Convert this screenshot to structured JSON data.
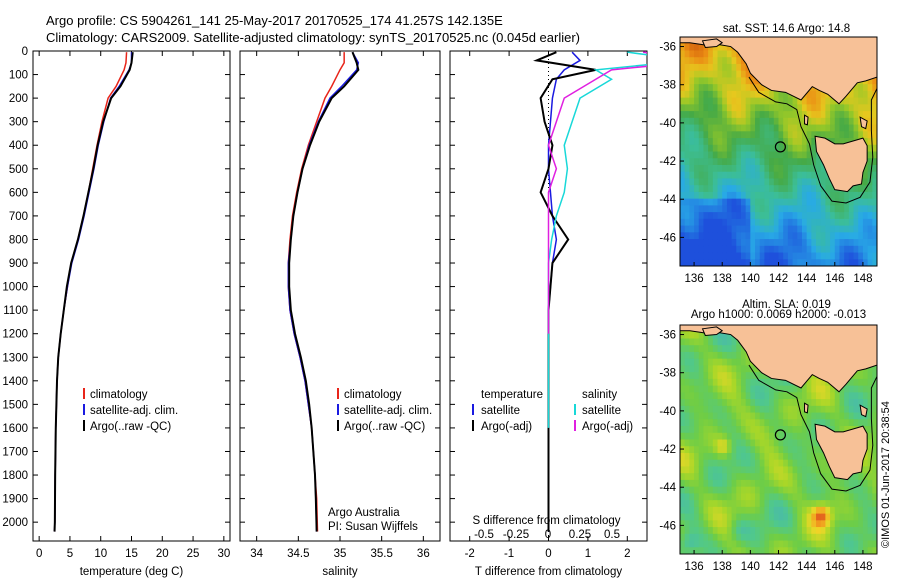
{
  "header": {
    "line1": "Argo profile: CS 5904261_141 25-May-2017 20170525_174 41.257S 142.135E",
    "line2": "Climatology: CARS2009. Satellite-adjusted climatology: synTS_20170525.nc (0.045d earlier)"
  },
  "credit": "©IMOS 01-Jun-2017 20:38:54",
  "colors": {
    "climatology": "#e8251a",
    "satellite": "#1a1ae0",
    "argo": "#000000",
    "sal_satellite": "#18d8d8",
    "sal_argo": "#e020e0",
    "land": "#f7c197",
    "coast": "#000000"
  },
  "chart_data": [
    {
      "type": "line",
      "id": "temperature",
      "xlabel": "temperature (deg C)",
      "ylabel": "",
      "xlim": [
        -1,
        31
      ],
      "ylim": [
        2080,
        0
      ],
      "xticks": [
        0,
        5,
        10,
        15,
        20,
        25,
        30
      ],
      "yticks": [
        0,
        100,
        200,
        300,
        400,
        500,
        600,
        700,
        800,
        900,
        1000,
        1100,
        1200,
        1300,
        1400,
        1500,
        1600,
        1700,
        1800,
        1900,
        2000
      ],
      "legend": [
        "climatology",
        "satellite-adj. clim.",
        "Argo(..raw -QC)"
      ],
      "series": [
        {
          "name": "climatology",
          "color": "#e8251a",
          "x": [
            14.2,
            14.1,
            13.8,
            12.5,
            11.2,
            10.2,
            9.4,
            8.7,
            8.0,
            7.2,
            6.3,
            5.2,
            4.6,
            4.0,
            3.5,
            3.1,
            2.9,
            2.8,
            2.7,
            2.6,
            2.55,
            2.5
          ],
          "y": [
            5,
            50,
            80,
            150,
            200,
            300,
            400,
            500,
            600,
            700,
            800,
            900,
            1000,
            1100,
            1200,
            1300,
            1400,
            1500,
            1600,
            1800,
            2000,
            2040
          ]
        },
        {
          "name": "satellite-adj. clim.",
          "color": "#1a1ae0",
          "x": [
            15.0,
            15.0,
            14.6,
            13.0,
            11.6,
            10.5,
            9.6,
            8.9,
            8.1,
            7.3,
            6.4,
            5.3,
            4.6,
            4.0,
            3.5,
            3.1,
            2.9,
            2.8,
            2.7,
            2.6,
            2.55,
            2.5
          ],
          "y": [
            5,
            50,
            80,
            150,
            200,
            300,
            400,
            500,
            600,
            700,
            800,
            900,
            1000,
            1100,
            1200,
            1300,
            1400,
            1500,
            1600,
            1800,
            2000,
            2040
          ]
        },
        {
          "name": "Argo(..raw -QC)",
          "color": "#000000",
          "x": [
            15.2,
            15.0,
            14.7,
            13.2,
            11.7,
            10.4,
            9.5,
            8.8,
            8.0,
            7.2,
            6.3,
            5.2,
            4.5,
            4.0,
            3.5,
            3.1,
            2.9,
            2.8,
            2.7,
            2.6,
            2.55,
            2.5
          ],
          "y": [
            5,
            50,
            80,
            150,
            200,
            300,
            400,
            500,
            600,
            700,
            800,
            900,
            1000,
            1100,
            1200,
            1300,
            1400,
            1500,
            1600,
            1800,
            2000,
            2040
          ]
        }
      ]
    },
    {
      "type": "line",
      "id": "salinity",
      "xlabel": "salinity",
      "xlim": [
        33.8,
        36.2
      ],
      "ylim": [
        2080,
        0
      ],
      "xticks": [
        34,
        34.5,
        35,
        35.5,
        36
      ],
      "legend": [
        "climatology",
        "satellite-adj. clim.",
        "Argo(..raw -QC)"
      ],
      "annotation": [
        "Argo Australia",
        "PI: Susan Wijffels"
      ],
      "series": [
        {
          "name": "climatology",
          "color": "#e8251a",
          "x": [
            35.05,
            35.05,
            35.0,
            34.9,
            34.82,
            34.72,
            34.62,
            34.54,
            34.48,
            34.43,
            34.4,
            34.38,
            34.38,
            34.4,
            34.45,
            34.52,
            34.58,
            34.62,
            34.66,
            34.68,
            34.7,
            34.72,
            34.73
          ],
          "y": [
            5,
            50,
            80,
            150,
            200,
            300,
            400,
            500,
            600,
            700,
            800,
            900,
            1000,
            1100,
            1200,
            1300,
            1400,
            1500,
            1600,
            1700,
            1800,
            1900,
            2040
          ]
        },
        {
          "name": "satellite-adj. clim.",
          "color": "#1a1ae0",
          "x": [
            35.15,
            35.22,
            35.2,
            35.02,
            34.88,
            34.74,
            34.63,
            34.55,
            34.49,
            34.44,
            34.41,
            34.38,
            34.38,
            34.4,
            34.45,
            34.52,
            34.58,
            34.62,
            34.66,
            34.68,
            34.7,
            34.71,
            34.72
          ],
          "y": [
            5,
            50,
            80,
            150,
            200,
            300,
            400,
            500,
            600,
            700,
            800,
            900,
            1000,
            1100,
            1200,
            1300,
            1400,
            1500,
            1600,
            1700,
            1800,
            1900,
            2040
          ]
        },
        {
          "name": "Argo(..raw -QC)",
          "color": "#000000",
          "x": [
            35.15,
            35.2,
            35.22,
            35.05,
            34.9,
            34.75,
            34.64,
            34.55,
            34.49,
            34.44,
            34.41,
            34.39,
            34.39,
            34.41,
            34.46,
            34.53,
            34.59,
            34.63,
            34.66,
            34.68,
            34.7,
            34.71,
            34.72
          ],
          "y": [
            5,
            50,
            80,
            150,
            200,
            300,
            400,
            500,
            600,
            700,
            800,
            900,
            1000,
            1100,
            1200,
            1300,
            1400,
            1500,
            1600,
            1700,
            1800,
            1900,
            2040
          ]
        }
      ]
    },
    {
      "type": "line",
      "id": "differences",
      "xlabel": "T difference from climatology",
      "xlabel_top": "S difference from climatology",
      "xlim": [
        -2.5,
        2.5
      ],
      "ylim": [
        2080,
        0
      ],
      "xticks": [
        -2,
        -1,
        0,
        1,
        2
      ],
      "xticks_top": [
        "-0.5",
        "-0.25",
        "0",
        "0.25",
        "0.5"
      ],
      "legend_left": {
        "heading": "temperature",
        "items": [
          "satellite",
          "Argo(-adj)"
        ]
      },
      "legend_right": {
        "heading": "salinity",
        "items": [
          "satellite",
          "Argo(-adj)"
        ]
      },
      "series": [
        {
          "name": "temperature satellite",
          "color": "#1a1ae0",
          "x": [
            0.6,
            0.8,
            0.4,
            0.2,
            0.1,
            0.05,
            0.0,
            0.0,
            0.05,
            0.1,
            0.2,
            0.1,
            0.05,
            0.0,
            0.0,
            0.0,
            0.0,
            0.0,
            0.0,
            0.0,
            0.0
          ],
          "y": [
            5,
            40,
            80,
            120,
            200,
            300,
            400,
            500,
            600,
            700,
            800,
            900,
            1000,
            1100,
            1200,
            1400,
            1600,
            1800,
            1900,
            2000,
            2040
          ]
        },
        {
          "name": "temperature Argo(-adj)",
          "color": "#000000",
          "x": [
            0.2,
            -0.3,
            1.2,
            0.1,
            -0.2,
            -0.1,
            0.1,
            0.0,
            -0.2,
            0.1,
            0.5,
            0.1,
            0.05,
            0.0,
            0.0,
            0.0,
            0.0,
            0.0,
            0.0,
            0.0,
            0.0
          ],
          "y": [
            5,
            40,
            80,
            120,
            200,
            300,
            400,
            500,
            600,
            700,
            800,
            900,
            1000,
            1100,
            1200,
            1400,
            1600,
            1800,
            1900,
            2000,
            2040
          ]
        },
        {
          "name": "salinity satellite",
          "color": "#18d8d8",
          "x": [
            0.5,
            0.9,
            0.3,
            0.4,
            0.2,
            0.15,
            0.1,
            0.12,
            0.1,
            0.05,
            0.02,
            0.0,
            0.0,
            0.0,
            0.0,
            0.0
          ],
          "y": [
            5,
            40,
            80,
            120,
            200,
            300,
            400,
            500,
            600,
            700,
            800,
            900,
            1000,
            1200,
            1400,
            1600
          ]
        },
        {
          "name": "salinity Argo(-adj)",
          "color": "#e020e0",
          "x": [
            0.6,
            1.0,
            0.4,
            0.3,
            0.1,
            0.05,
            0.0,
            0.05,
            0.0,
            0.0,
            0.0,
            0.0,
            0.0,
            0.0
          ],
          "y": [
            5,
            40,
            80,
            120,
            200,
            300,
            400,
            500,
            600,
            700,
            800,
            900,
            1000,
            1200
          ]
        }
      ]
    },
    {
      "type": "heatmap",
      "id": "sst_map",
      "title": "sat. SST: 14.6  Argo: 14.8",
      "xlim": [
        135,
        149
      ],
      "ylim": [
        -47.5,
        -35.5
      ],
      "xticks": [
        136,
        138,
        140,
        142,
        144,
        146,
        148
      ],
      "yticks": [
        -36,
        -38,
        -40,
        -42,
        -44,
        -46
      ],
      "marker": {
        "lon": 142.135,
        "lat": -41.257
      }
    },
    {
      "type": "heatmap",
      "id": "sla_map",
      "title": "Altim. SLA: 0.019",
      "subtitle": "Argo h1000: 0.0069  h2000: -0.013",
      "xlim": [
        135,
        149
      ],
      "ylim": [
        -47.5,
        -35.5
      ],
      "xticks": [
        136,
        138,
        140,
        142,
        144,
        146,
        148
      ],
      "yticks": [
        -36,
        -38,
        -40,
        -42,
        -44,
        -46
      ],
      "marker": {
        "lon": 142.135,
        "lat": -41.257
      }
    }
  ]
}
